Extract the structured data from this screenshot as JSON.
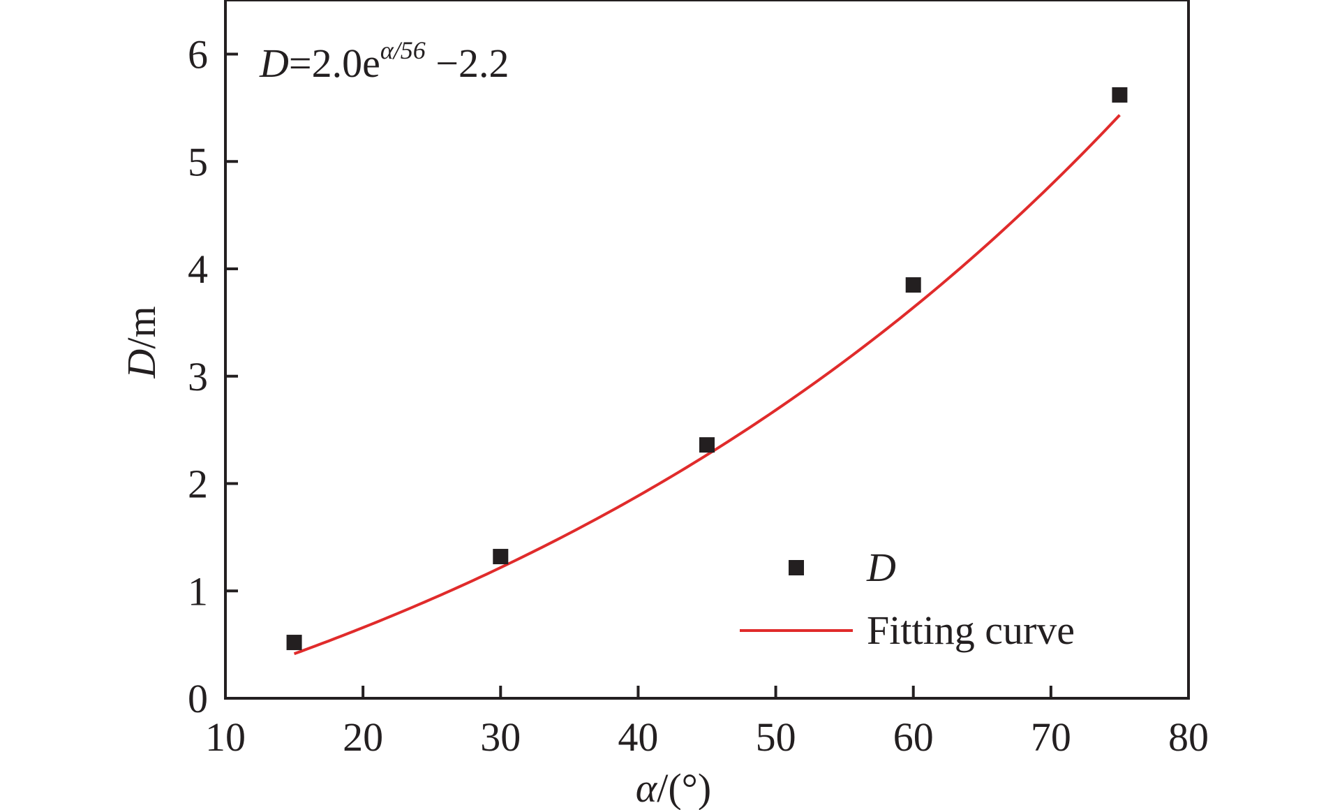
{
  "chart_data": {
    "type": "scatter",
    "xlabel": {
      "var": "α",
      "unit": "/(°)"
    },
    "ylabel": {
      "var": "D",
      "unit": "/m"
    },
    "xlim": [
      10,
      80
    ],
    "ylim": [
      0,
      6.5
    ],
    "xticks": [
      10,
      20,
      30,
      40,
      50,
      60,
      70,
      80
    ],
    "yticks": [
      0,
      1,
      2,
      3,
      4,
      5,
      6
    ],
    "grid": false,
    "legend_position": "bottom-right",
    "annotation": {
      "var": "D",
      "main": "=2.0e",
      "exponent": "α/56",
      "tail": " −2.2"
    },
    "series": [
      {
        "name": "D",
        "kind": "scatter",
        "marker": "square",
        "color": "#231f20",
        "points": [
          {
            "x": 15,
            "y": 0.52
          },
          {
            "x": 30,
            "y": 1.32
          },
          {
            "x": 45,
            "y": 2.36
          },
          {
            "x": 60,
            "y": 3.85
          },
          {
            "x": 75,
            "y": 5.62
          }
        ]
      },
      {
        "name": "Fitting curve",
        "kind": "line",
        "color": "#e02b2b",
        "equation": {
          "a": 2.0,
          "b": 56,
          "c": -2.2
        },
        "x_range": [
          15,
          75
        ]
      }
    ]
  }
}
